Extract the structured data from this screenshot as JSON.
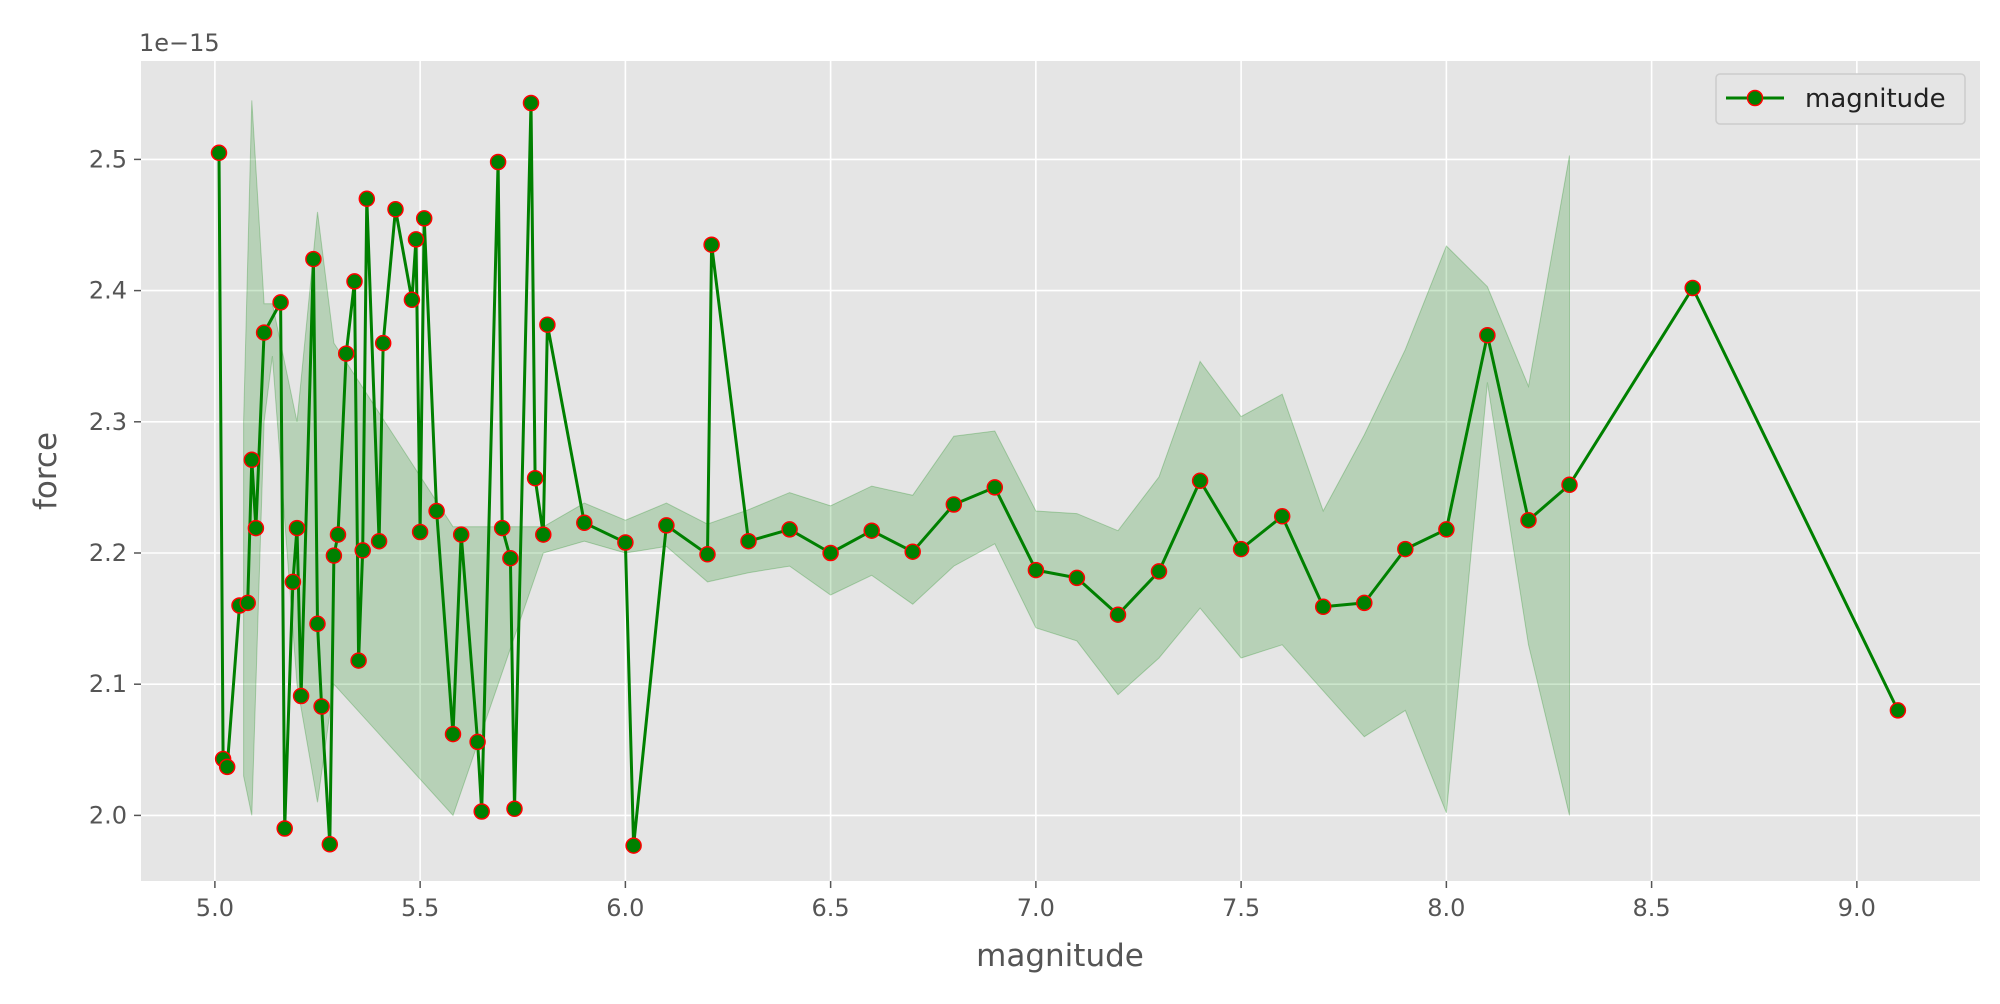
{
  "chart_data": {
    "type": "line",
    "title": "",
    "xlabel": "magnitude",
    "ylabel": "force",
    "offset_text": "1e−15",
    "xlim": [
      4.82,
      9.3
    ],
    "ylim": [
      1.95,
      2.575
    ],
    "x_ticks": [
      5.0,
      5.5,
      6.0,
      6.5,
      7.0,
      7.5,
      8.0,
      8.5,
      9.0
    ],
    "x_tick_labels": [
      "5.0",
      "5.5",
      "6.0",
      "6.5",
      "7.0",
      "7.5",
      "8.0",
      "8.5",
      "9.0"
    ],
    "y_ticks": [
      2.0,
      2.1,
      2.2,
      2.3,
      2.4,
      2.5
    ],
    "y_tick_labels": [
      "2.0",
      "2.1",
      "2.2",
      "2.3",
      "2.4",
      "2.5"
    ],
    "grid": true,
    "legend_position": "top-right",
    "colors": {
      "line": "#008000",
      "marker_face": "#008000",
      "marker_edge": "#ff0000",
      "band": "#008000",
      "plot_bg": "#e5e5e5",
      "grid": "#ffffff"
    },
    "series": [
      {
        "name": "magnitude",
        "x": [
          5.01,
          5.02,
          5.03,
          5.06,
          5.08,
          5.09,
          5.1,
          5.12,
          5.16,
          5.17,
          5.19,
          5.2,
          5.21,
          5.24,
          5.25,
          5.26,
          5.28,
          5.29,
          5.3,
          5.32,
          5.34,
          5.35,
          5.36,
          5.37,
          5.4,
          5.41,
          5.44,
          5.48,
          5.49,
          5.5,
          5.51,
          5.54,
          5.58,
          5.6,
          5.64,
          5.65,
          5.69,
          5.7,
          5.72,
          5.73,
          5.77,
          5.78,
          5.8,
          5.81,
          5.9,
          6.0,
          6.02,
          6.1,
          6.2,
          6.21,
          6.3,
          6.4,
          6.5,
          6.6,
          6.7,
          6.8,
          6.9,
          7.0,
          7.1,
          7.2,
          7.3,
          7.4,
          7.5,
          7.6,
          7.7,
          7.8,
          7.9,
          8.0,
          8.1,
          8.2,
          8.3,
          8.6,
          9.1
        ],
        "y": [
          2.505,
          2.043,
          2.037,
          2.16,
          2.162,
          2.271,
          2.219,
          2.368,
          2.391,
          1.99,
          2.178,
          2.219,
          2.091,
          2.424,
          2.146,
          2.083,
          1.978,
          2.198,
          2.214,
          2.352,
          2.407,
          2.118,
          2.202,
          2.47,
          2.209,
          2.36,
          2.462,
          2.393,
          2.439,
          2.216,
          2.455,
          2.232,
          2.062,
          2.214,
          2.056,
          2.003,
          2.498,
          2.219,
          2.196,
          2.005,
          2.543,
          2.257,
          2.214,
          2.374,
          2.223,
          2.208,
          1.977,
          2.221,
          2.199,
          2.435,
          2.209,
          2.218,
          2.2,
          2.217,
          2.201,
          2.237,
          2.25,
          2.187,
          2.181,
          2.153,
          2.186,
          2.255,
          2.203,
          2.228,
          2.159,
          2.162,
          2.203,
          2.218,
          2.366,
          2.225,
          2.252,
          2.402,
          2.08
        ]
      }
    ],
    "band": {
      "x": [
        5.07,
        5.09,
        5.12,
        5.14,
        5.2,
        5.25,
        5.29,
        5.58,
        5.8,
        5.9,
        6.0,
        6.1,
        6.2,
        6.3,
        6.4,
        6.5,
        6.6,
        6.7,
        6.8,
        6.9,
        7.0,
        7.1,
        7.2,
        7.3,
        7.4,
        7.5,
        7.6,
        7.7,
        7.8,
        7.9,
        8.0,
        8.1,
        8.2,
        8.3
      ],
      "lower": [
        2.03,
        2.0,
        2.3,
        2.35,
        2.1,
        2.01,
        2.1,
        2.0,
        2.2,
        2.209,
        2.2,
        2.205,
        2.178,
        2.185,
        2.19,
        2.168,
        2.183,
        2.161,
        2.19,
        2.207,
        2.143,
        2.133,
        2.092,
        2.12,
        2.158,
        2.12,
        2.13,
        2.095,
        2.06,
        2.08,
        2.002,
        2.33,
        2.13,
        2.0
      ],
      "upper": [
        2.3,
        2.545,
        2.39,
        2.39,
        2.3,
        2.46,
        2.36,
        2.22,
        2.22,
        2.238,
        2.225,
        2.238,
        2.222,
        2.233,
        2.246,
        2.236,
        2.251,
        2.244,
        2.289,
        2.293,
        2.232,
        2.23,
        2.217,
        2.258,
        2.346,
        2.304,
        2.321,
        2.232,
        2.29,
        2.355,
        2.434,
        2.403,
        2.327,
        2.503
      ]
    }
  }
}
